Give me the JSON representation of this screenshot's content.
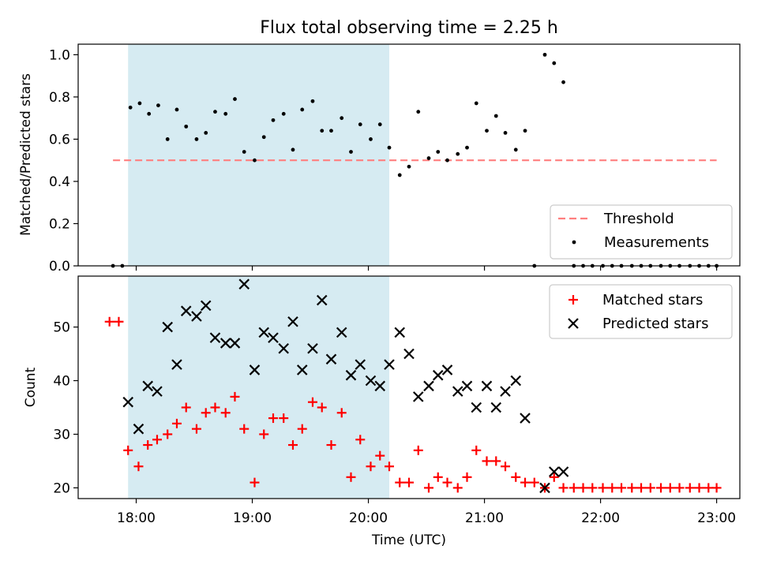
{
  "figure": {
    "title": "Flux total observing time = 2.25 h",
    "xlabel": "Time (UTC)"
  },
  "colors": {
    "shade": "#add8e6",
    "threshold": "#ff7f7f",
    "measurement": "#000000",
    "matched": "#ff0000",
    "predicted": "#000000"
  },
  "chart_data": [
    {
      "type": "scatter",
      "ylabel": "Matched/Predicted stars",
      "xlim": [
        17.5,
        23.2
      ],
      "ylim": [
        0.0,
        1.05
      ],
      "yticks": [
        0.0,
        0.2,
        0.4,
        0.6,
        0.8,
        1.0
      ],
      "ytick_labels": [
        "0.0",
        "0.2",
        "0.4",
        "0.6",
        "0.8",
        "1.0"
      ],
      "shaded_interval": [
        17.93,
        20.18
      ],
      "threshold": {
        "name": "Threshold",
        "value": 0.5,
        "x": [
          17.8,
          23.0
        ]
      },
      "legend_position": "lower right",
      "series": [
        {
          "name": "Measurements",
          "x": [
            17.8,
            17.88,
            17.95,
            18.03,
            18.11,
            18.19,
            18.27,
            18.35,
            18.43,
            18.52,
            18.6,
            18.68,
            18.77,
            18.85,
            18.93,
            19.02,
            19.1,
            19.18,
            19.27,
            19.35,
            19.43,
            19.52,
            19.6,
            19.68,
            19.77,
            19.85,
            19.93,
            20.02,
            20.1,
            20.18,
            20.27,
            20.35,
            20.43,
            20.52,
            20.6,
            20.68,
            20.77,
            20.85,
            20.93,
            21.02,
            21.1,
            21.18,
            21.27,
            21.35,
            21.43,
            21.52,
            21.6,
            21.68,
            21.77,
            21.85,
            21.93,
            22.02,
            22.1,
            22.18,
            22.27,
            22.35,
            22.43,
            22.52,
            22.6,
            22.68,
            22.77,
            22.85,
            22.93,
            23.0
          ],
          "y": [
            0.0,
            0.0,
            0.75,
            0.77,
            0.72,
            0.76,
            0.6,
            0.74,
            0.66,
            0.6,
            0.63,
            0.73,
            0.72,
            0.79,
            0.54,
            0.5,
            0.61,
            0.69,
            0.72,
            0.55,
            0.74,
            0.78,
            0.64,
            0.64,
            0.7,
            0.54,
            0.67,
            0.6,
            0.67,
            0.56,
            0.43,
            0.47,
            0.73,
            0.51,
            0.54,
            0.5,
            0.53,
            0.56,
            0.77,
            0.64,
            0.71,
            0.63,
            0.55,
            0.64,
            0.0,
            1.0,
            0.96,
            0.87,
            0.0,
            0.0,
            0.0,
            0.0,
            0.0,
            0.0,
            0.0,
            0.0,
            0.0,
            0.0,
            0.0,
            0.0,
            0.0,
            0.0,
            0.0,
            0.0
          ]
        }
      ]
    },
    {
      "type": "scatter",
      "ylabel": "Count",
      "xlim": [
        17.5,
        23.2
      ],
      "ylim": [
        18,
        59.5
      ],
      "yticks": [
        20,
        30,
        40,
        50
      ],
      "ytick_labels": [
        "20",
        "30",
        "40",
        "50"
      ],
      "xticks": [
        18,
        19,
        20,
        21,
        22,
        23
      ],
      "xtick_labels": [
        "18:00",
        "19:00",
        "20:00",
        "21:00",
        "22:00",
        "23:00"
      ],
      "shaded_interval": [
        17.93,
        20.18
      ],
      "legend_position": "upper right",
      "series": [
        {
          "name": "Matched stars",
          "marker": "plus",
          "x": [
            17.77,
            17.85,
            17.93,
            18.02,
            18.1,
            18.18,
            18.27,
            18.35,
            18.43,
            18.52,
            18.6,
            18.68,
            18.77,
            18.85,
            18.93,
            19.02,
            19.1,
            19.18,
            19.27,
            19.35,
            19.43,
            19.52,
            19.6,
            19.68,
            19.77,
            19.85,
            19.93,
            20.02,
            20.1,
            20.18,
            20.27,
            20.35,
            20.43,
            20.52,
            20.6,
            20.68,
            20.77,
            20.85,
            20.93,
            21.02,
            21.1,
            21.18,
            21.27,
            21.35,
            21.43,
            21.52,
            21.6,
            21.68,
            21.77,
            21.85,
            21.93,
            22.02,
            22.1,
            22.18,
            22.27,
            22.35,
            22.43,
            22.52,
            22.6,
            22.68,
            22.77,
            22.85,
            22.93,
            23.0
          ],
          "y": [
            51,
            51,
            27,
            24,
            28,
            29,
            30,
            32,
            35,
            31,
            34,
            35,
            34,
            37,
            31,
            21,
            30,
            33,
            33,
            28,
            31,
            36,
            35,
            28,
            34,
            22,
            29,
            24,
            26,
            24,
            21,
            21,
            27,
            20,
            22,
            21,
            20,
            22,
            27,
            25,
            25,
            24,
            22,
            21,
            21,
            20,
            22,
            20,
            20,
            20,
            20,
            20,
            20,
            20,
            20,
            20,
            20,
            20,
            20,
            20,
            20,
            20,
            20,
            20
          ]
        },
        {
          "name": "Predicted stars",
          "marker": "cross",
          "x": [
            17.93,
            18.02,
            18.1,
            18.18,
            18.27,
            18.35,
            18.43,
            18.52,
            18.6,
            18.68,
            18.77,
            18.85,
            18.93,
            19.02,
            19.1,
            19.18,
            19.27,
            19.35,
            19.43,
            19.52,
            19.6,
            19.68,
            19.77,
            19.85,
            19.93,
            20.02,
            20.1,
            20.18,
            20.27,
            20.35,
            20.43,
            20.52,
            20.6,
            20.68,
            20.77,
            20.85,
            20.93,
            21.02,
            21.1,
            21.18,
            21.27,
            21.35,
            21.52,
            21.6,
            21.68
          ],
          "y": [
            36,
            31,
            39,
            38,
            50,
            43,
            53,
            52,
            54,
            48,
            47,
            47,
            58,
            42,
            49,
            48,
            46,
            51,
            42,
            46,
            55,
            44,
            49,
            41,
            43,
            40,
            39,
            43,
            49,
            45,
            37,
            39,
            41,
            42,
            38,
            39,
            35,
            39,
            35,
            38,
            40,
            33,
            20,
            23,
            23
          ]
        }
      ]
    }
  ]
}
